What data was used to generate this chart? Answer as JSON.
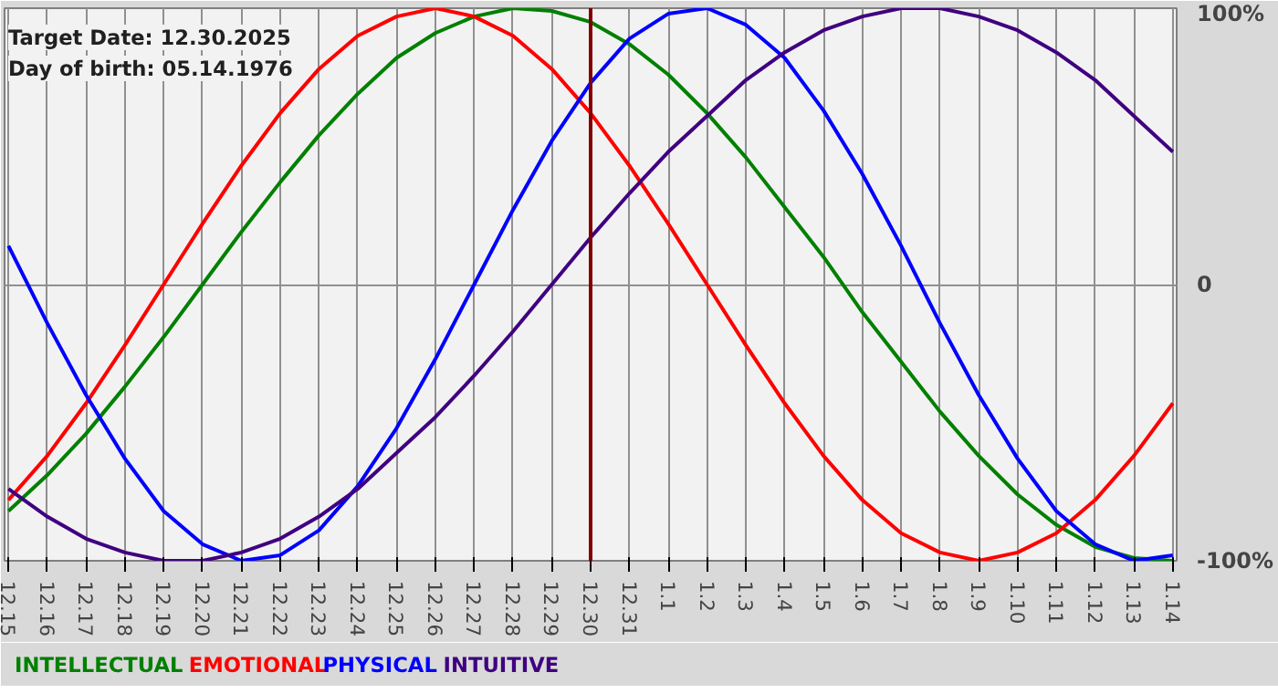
{
  "chart_data": {
    "type": "line",
    "categories": [
      "12.15",
      "12.16",
      "12.17",
      "12.18",
      "12.19",
      "12.20",
      "12.21",
      "12.22",
      "12.23",
      "12.24",
      "12.25",
      "12.26",
      "12.27",
      "12.28",
      "12.29",
      "12.30",
      "12.31",
      "1.1",
      "1.2",
      "1.3",
      "1.4",
      "1.5",
      "1.6",
      "1.7",
      "1.8",
      "1.9",
      "1.10",
      "1.11",
      "1.12",
      "1.13",
      "1.14"
    ],
    "series": [
      {
        "name": "INTELLECTUAL",
        "color": "#008000",
        "values": [
          -82,
          -69,
          -54,
          -37,
          -19,
          0,
          19,
          37,
          54,
          69,
          82,
          91,
          97,
          100,
          99,
          95,
          87,
          76,
          62,
          46,
          28,
          10,
          -10,
          -28,
          -46,
          -62,
          -76,
          -87,
          -95,
          -99,
          -100
        ]
      },
      {
        "name": "EMOTIONAL",
        "color": "#ff0000",
        "values": [
          -78,
          -62,
          -43,
          -22,
          0,
          22,
          43,
          62,
          78,
          90,
          97,
          100,
          97,
          90,
          78,
          62,
          43,
          22,
          0,
          -22,
          -43,
          -62,
          -78,
          -90,
          -97,
          -100,
          -97,
          -90,
          -78,
          -62,
          -43
        ]
      },
      {
        "name": "PHYSICAL",
        "color": "#0000ff",
        "values": [
          14,
          -14,
          -40,
          -63,
          -82,
          -94,
          -100,
          -98,
          -89,
          -73,
          -52,
          -27,
          0,
          27,
          52,
          73,
          89,
          98,
          100,
          94,
          82,
          63,
          40,
          14,
          -14,
          -40,
          -63,
          -82,
          -94,
          -100,
          -98
        ]
      },
      {
        "name": "INTUITIVE",
        "color": "#400080",
        "values": [
          -74,
          -84,
          -92,
          -97,
          -100,
          -100,
          -97,
          -92,
          -84,
          -74,
          -61,
          -48,
          -33,
          -17,
          0,
          17,
          33,
          48,
          61,
          74,
          84,
          92,
          97,
          100,
          100,
          97,
          92,
          84,
          74,
          61,
          48
        ]
      }
    ],
    "ylim": [
      -100,
      100
    ],
    "yticks": [
      {
        "value": 100,
        "label": "100%"
      },
      0,
      {
        "value": -100,
        "label": "-100%"
      }
    ],
    "ref_lines": [
      {
        "axis": "x",
        "value": "12.30",
        "color": "#800000"
      }
    ],
    "annotations": [
      "Target Date: 12.30.2025",
      "Day of birth: 05.14.1976"
    ],
    "grid": true,
    "marker": "none",
    "line_style": "solid"
  }
}
